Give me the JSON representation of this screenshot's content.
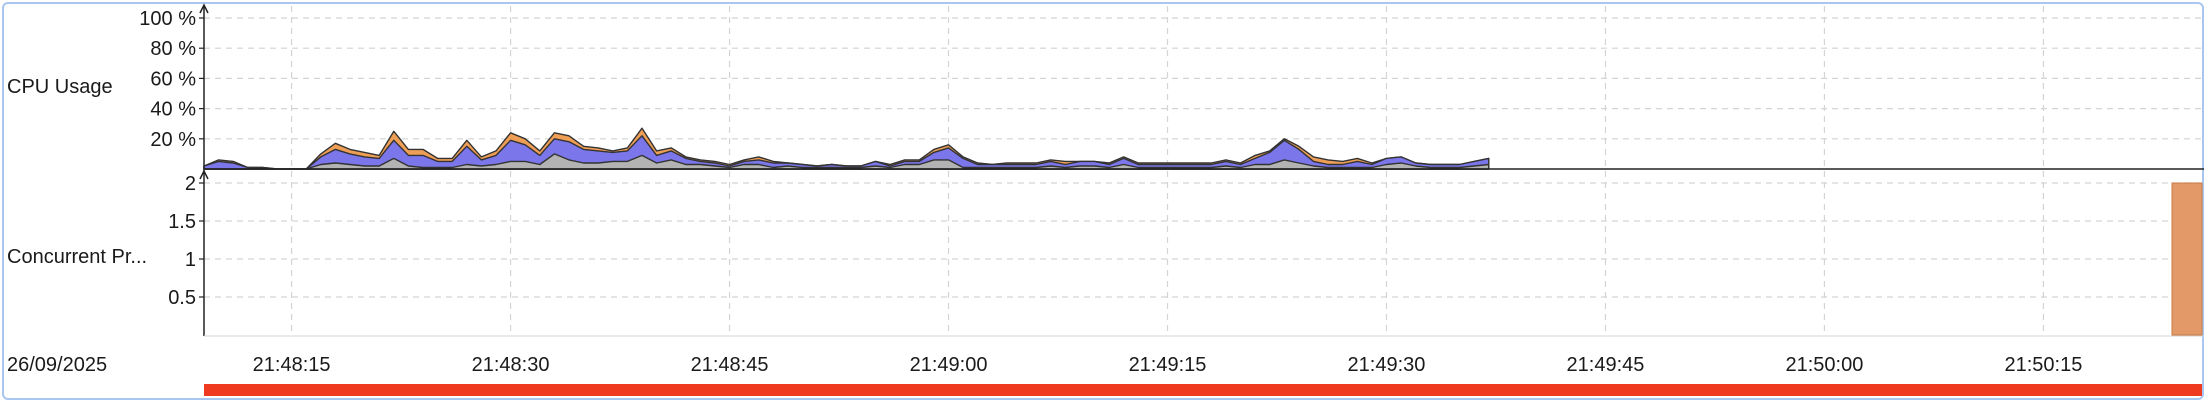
{
  "colors": {
    "grid": "#d4d4d4",
    "axis": "#222222",
    "system": "#ef9f55",
    "user": "#7b76ea",
    "other": "#b3b3b3",
    "outline": "#333333",
    "progress": "#ef3a1f",
    "frame": "#a8c6f0"
  },
  "chart_data": [
    {
      "type": "area",
      "ylabel": "CPU Usage",
      "ylim": [
        0,
        100
      ],
      "yticks": [
        "100 %",
        "80 %",
        "60 %",
        "40 %",
        "20 %"
      ],
      "yticks_values": [
        100,
        80,
        60,
        40,
        20
      ],
      "x_seconds_from_start": [
        0,
        1,
        2,
        3,
        4,
        5,
        6,
        7,
        8,
        9,
        10,
        11,
        12,
        13,
        14,
        15,
        16,
        17,
        18,
        19,
        20,
        21,
        22,
        23,
        24,
        25,
        26,
        27,
        28,
        29,
        30,
        31,
        32,
        33,
        34,
        35,
        36,
        37,
        38,
        39,
        40,
        41,
        42,
        43,
        44,
        45,
        46,
        47,
        48,
        49,
        50,
        51,
        52,
        53,
        54,
        55,
        56,
        57,
        58,
        59,
        60,
        61,
        62,
        63,
        64,
        65,
        66,
        67,
        68,
        69,
        70,
        71,
        72,
        73,
        74,
        75,
        76,
        77,
        78,
        79,
        80,
        81,
        82,
        83,
        84,
        85,
        86,
        87,
        88
      ],
      "series": [
        {
          "values": [
            0,
            1,
            1,
            0,
            0,
            0,
            0,
            0,
            2,
            4,
            3,
            3,
            2,
            6,
            4,
            4,
            2,
            2,
            4,
            2,
            3,
            5,
            4,
            3,
            4,
            4,
            2,
            2,
            1,
            2,
            5,
            3,
            2,
            1,
            1,
            1,
            1,
            1,
            2,
            1,
            0,
            0,
            0,
            0,
            0,
            0,
            0,
            1,
            1,
            1,
            2,
            2,
            1,
            1,
            0,
            1,
            1,
            1,
            1,
            2,
            0,
            0,
            1,
            1,
            1,
            1,
            1,
            1,
            1,
            1,
            1,
            1,
            2,
            1,
            1,
            2,
            3,
            3,
            2,
            2,
            1,
            0,
            0,
            0,
            0,
            0,
            0,
            0,
            0
          ]
        },
        {
          "values": [
            2,
            5,
            4,
            1,
            1,
            0,
            0,
            0,
            5,
            9,
            7,
            6,
            5,
            12,
            7,
            8,
            4,
            4,
            12,
            4,
            6,
            14,
            11,
            6,
            10,
            12,
            9,
            8,
            6,
            7,
            13,
            5,
            6,
            4,
            2,
            2,
            1,
            2,
            3,
            3,
            2,
            2,
            1,
            2,
            1,
            1,
            3,
            1,
            2,
            2,
            5,
            8,
            6,
            2,
            2,
            2,
            2,
            2,
            3,
            2,
            3,
            3,
            2,
            4,
            2,
            2,
            2,
            2,
            2,
            2,
            3,
            2,
            4,
            8,
            13,
            9,
            3,
            2,
            2,
            4,
            2,
            4,
            4,
            2,
            2,
            2,
            2,
            3,
            4
          ]
        },
        {
          "values": [
            0,
            0,
            0,
            0,
            0,
            0,
            0,
            0,
            3,
            4,
            3,
            2,
            2,
            7,
            2,
            1,
            1,
            1,
            3,
            2,
            3,
            5,
            5,
            3,
            10,
            6,
            4,
            4,
            5,
            5,
            9,
            4,
            6,
            3,
            3,
            2,
            1,
            3,
            3,
            1,
            2,
            1,
            1,
            1,
            1,
            1,
            2,
            1,
            3,
            3,
            6,
            6,
            1,
            1,
            1,
            1,
            1,
            1,
            2,
            1,
            2,
            2,
            1,
            3,
            1,
            1,
            1,
            1,
            1,
            1,
            2,
            1,
            3,
            3,
            6,
            4,
            2,
            1,
            1,
            1,
            1,
            3,
            4,
            2,
            1,
            1,
            1,
            2,
            3
          ]
        }
      ]
    },
    {
      "type": "bar",
      "ylabel": "Concurrent Pr...",
      "ylim": [
        0,
        2
      ],
      "yticks": [
        "2",
        "1.5",
        "1",
        "0.5"
      ],
      "yticks_values": [
        2,
        1.5,
        1,
        0.5
      ],
      "value": 2
    }
  ],
  "timeline": {
    "date_label": "26/09/2025",
    "ticks": [
      "21:48:15",
      "21:48:30",
      "21:48:45",
      "21:49:00",
      "21:49:15",
      "21:49:30",
      "21:49:45",
      "21:50:00",
      "21:50:15"
    ],
    "tick_seconds_from_start": [
      6,
      21,
      36,
      51,
      66,
      81,
      96,
      111,
      126
    ],
    "x_range_seconds": [
      0,
      137
    ],
    "progress_fraction": 1.0
  }
}
